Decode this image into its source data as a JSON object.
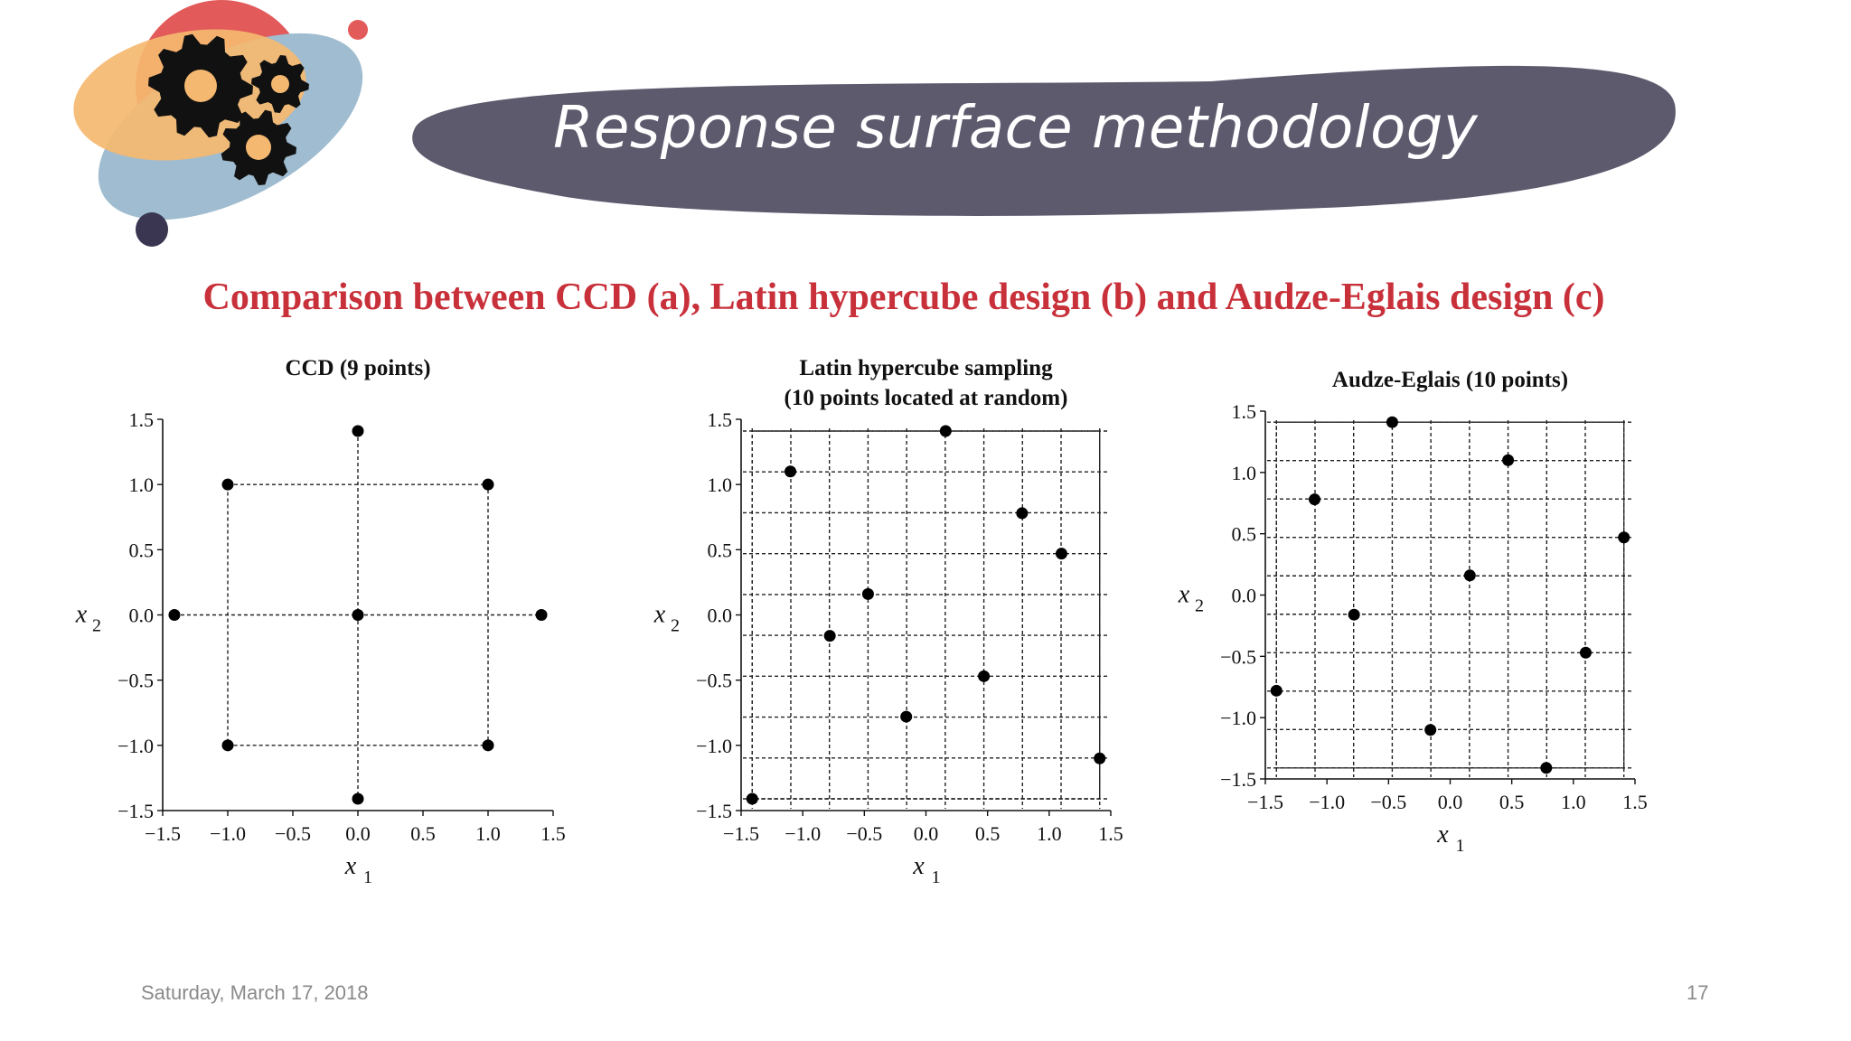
{
  "slide": {
    "title": "Response surface methodology",
    "subtitle": "Comparison between CCD (a), Latin hypercube design (b) and Audze-Eglais design (c)",
    "date": "Saturday, March 17, 2018",
    "page_number": "17",
    "colors": {
      "banner": "#5e5a6e",
      "subtitle": "#c8303a",
      "blob_orange": "#f5b870",
      "blob_blue": "#9fbcd0",
      "blob_red": "#e25a5a",
      "gear": "#111111"
    },
    "logo_icon": "gears-icon"
  },
  "chart_data": [
    {
      "type": "scatter",
      "title": [
        "CCD (9 points)"
      ],
      "xlabel": "x",
      "xlabel_sub": "1",
      "ylabel": "x",
      "ylabel_sub": "2",
      "xlim": [
        -1.5,
        1.5
      ],
      "ylim": [
        -1.5,
        1.5
      ],
      "xticks": [
        "−1.5",
        "−1.0",
        "−0.5",
        "0.0",
        "0.5",
        "1.0",
        "1.5"
      ],
      "yticks": [
        "−1.5",
        "−1.0",
        "−0.5",
        "0.0",
        "0.5",
        "1.0",
        "1.5"
      ],
      "tick_values": [
        -1.5,
        -1.0,
        -0.5,
        0.0,
        0.5,
        1.0,
        1.5
      ],
      "frame": "left-bottom",
      "grid": "ccd-construction-lines",
      "points": [
        [
          -1,
          -1
        ],
        [
          1,
          -1
        ],
        [
          -1,
          1
        ],
        [
          1,
          1
        ],
        [
          -1.41,
          0
        ],
        [
          1.41,
          0
        ],
        [
          0,
          -1.41
        ],
        [
          0,
          1.41
        ],
        [
          0,
          0
        ]
      ]
    },
    {
      "type": "scatter",
      "title": [
        "Latin hypercube sampling",
        "(10 points located at random)"
      ],
      "xlabel": "x",
      "xlabel_sub": "1",
      "ylabel": "x",
      "ylabel_sub": "2",
      "xlim": [
        -1.5,
        1.5
      ],
      "ylim": [
        -1.5,
        1.5
      ],
      "xticks": [
        "−1.5",
        "−1.0",
        "−0.5",
        "0.0",
        "0.5",
        "1.0",
        "1.5"
      ],
      "yticks": [
        "−1.5",
        "−1.0",
        "−0.5",
        "0.0",
        "0.5",
        "1.0",
        "1.5"
      ],
      "tick_values": [
        -1.5,
        -1.0,
        -0.5,
        0.0,
        0.5,
        1.0,
        1.5
      ],
      "frame": "box",
      "grid": "10x10-dashed",
      "points": [
        [
          -1.41,
          -1.41
        ],
        [
          -1.1,
          1.1
        ],
        [
          -0.78,
          -0.16
        ],
        [
          -0.47,
          0.16
        ],
        [
          -0.16,
          -0.78
        ],
        [
          0.16,
          1.41
        ],
        [
          0.47,
          -0.47
        ],
        [
          0.78,
          0.78
        ],
        [
          1.1,
          0.47
        ],
        [
          1.41,
          -1.1
        ]
      ]
    },
    {
      "type": "scatter",
      "title": [
        "Audze-Eglais (10 points)"
      ],
      "xlabel": "x",
      "xlabel_sub": "1",
      "ylabel": "x",
      "ylabel_sub": "2",
      "xlim": [
        -1.5,
        1.5
      ],
      "ylim": [
        -1.5,
        1.5
      ],
      "xticks": [
        "−1.5",
        "−1.0",
        "−0.5",
        "0.0",
        "0.5",
        "1.0",
        "1.5"
      ],
      "yticks": [
        "−1.5",
        "−1.0",
        "−0.5",
        "0.0",
        "0.5",
        "1.0",
        "1.5"
      ],
      "tick_values": [
        -1.5,
        -1.0,
        -0.5,
        0.0,
        0.5,
        1.0,
        1.5
      ],
      "frame": "box",
      "grid": "10x10-dashed",
      "points": [
        [
          -1.41,
          -0.78
        ],
        [
          -1.1,
          0.78
        ],
        [
          -0.78,
          -0.16
        ],
        [
          -0.47,
          1.41
        ],
        [
          -0.16,
          -1.1
        ],
        [
          0.16,
          0.16
        ],
        [
          0.47,
          1.1
        ],
        [
          0.78,
          -1.41
        ],
        [
          1.1,
          -0.47
        ],
        [
          1.41,
          0.47
        ]
      ]
    }
  ]
}
